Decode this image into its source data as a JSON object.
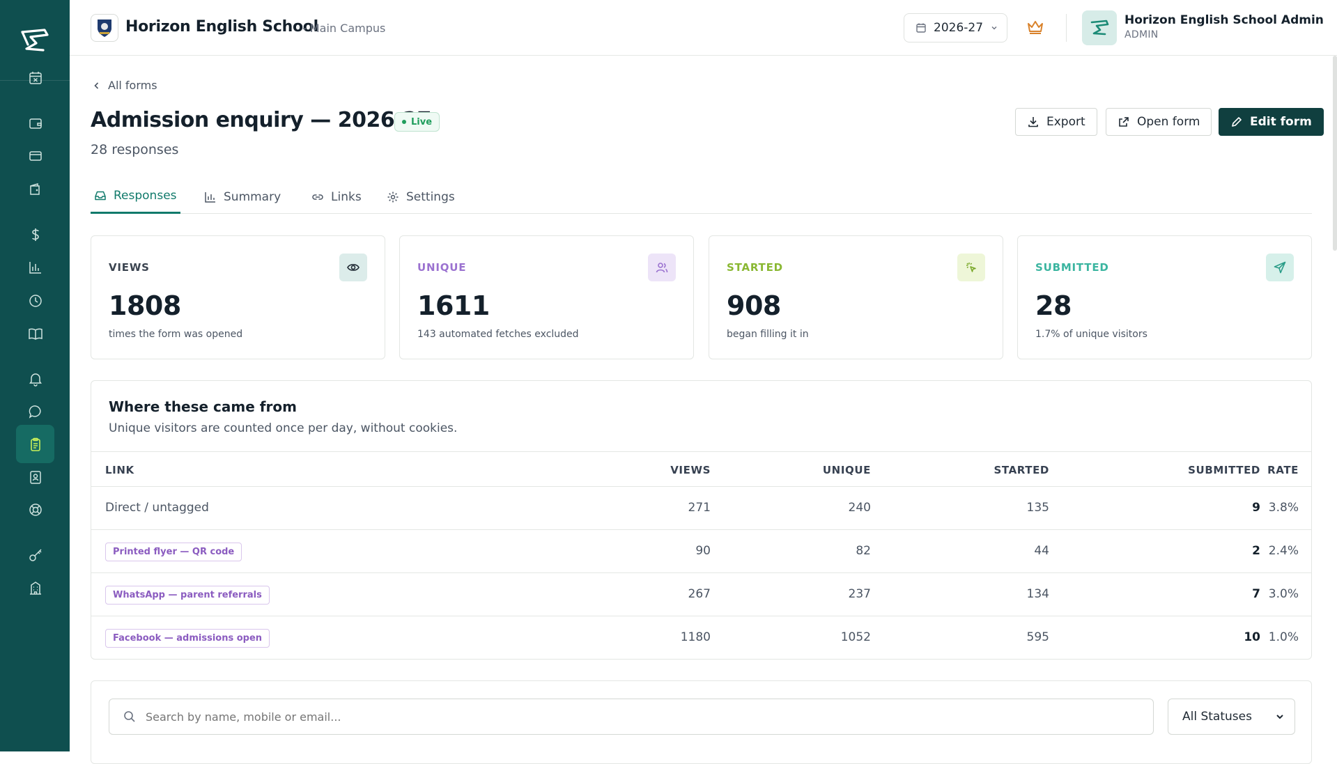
{
  "sidebar": {
    "items": [
      {
        "icon": "calendar-x-icon",
        "name": "sidebar-item-calendar"
      },
      {
        "icon": "wallet-icon",
        "name": "sidebar-item-wallet"
      },
      {
        "icon": "credit-card-icon",
        "name": "sidebar-item-cards"
      },
      {
        "icon": "wallet-2-icon",
        "name": "sidebar-item-wallet-2"
      },
      {
        "icon": "dollar-icon",
        "name": "sidebar-item-fees"
      },
      {
        "icon": "bar-chart-icon",
        "name": "sidebar-item-reports"
      },
      {
        "icon": "clock-icon",
        "name": "sidebar-item-history"
      },
      {
        "icon": "book-open-icon",
        "name": "sidebar-item-library"
      },
      {
        "icon": "bell-icon",
        "name": "sidebar-item-notifications"
      },
      {
        "icon": "message-icon",
        "name": "sidebar-item-messages"
      },
      {
        "icon": "clipboard-icon",
        "name": "sidebar-item-forms",
        "active": true
      },
      {
        "icon": "id-card-icon",
        "name": "sidebar-item-admissions"
      },
      {
        "icon": "lifebuoy-icon",
        "name": "sidebar-item-support"
      },
      {
        "icon": "key-icon",
        "name": "sidebar-item-access"
      },
      {
        "icon": "building-icon",
        "name": "sidebar-item-campus"
      }
    ]
  },
  "header": {
    "school_name": "Horizon English School",
    "campus": "- Main Campus",
    "year": "2026-27",
    "admin_name": "Horizon English School Admin",
    "admin_role": "ADMIN"
  },
  "page": {
    "back_label": "All forms",
    "title": "Admission enquiry — 2026-27",
    "status": "Live",
    "responses": "28 responses",
    "actions": {
      "export": "Export",
      "open": "Open form",
      "edit": "Edit form"
    }
  },
  "tabs": [
    {
      "label": "Responses",
      "icon": "inbox-icon",
      "active": true
    },
    {
      "label": "Summary",
      "icon": "bar-chart-icon"
    },
    {
      "label": "Links",
      "icon": "link-icon"
    },
    {
      "label": "Settings",
      "icon": "gear-icon"
    }
  ],
  "stats": [
    {
      "label": "VIEWS",
      "value": "1808",
      "sub": "times the form was opened",
      "color": "#3b4450",
      "icon": "eye-icon",
      "icon_bg": "#dcecea"
    },
    {
      "label": "UNIQUE",
      "value": "1611",
      "sub": "143 automated fetches excluded",
      "color": "#9b72d0",
      "icon": "users-icon",
      "icon_bg": "#ede4f8"
    },
    {
      "label": "STARTED",
      "value": "908",
      "sub": "began filling it in",
      "color": "#8ab833",
      "icon": "sparkle-cursor-icon",
      "icon_bg": "#eef6d8"
    },
    {
      "label": "SUBMITTED",
      "value": "28",
      "sub": "1.7% of unique visitors",
      "color": "#3bb5a0",
      "icon": "send-icon",
      "icon_bg": "#d6f0ea"
    }
  ],
  "sources": {
    "title": "Where these came from",
    "subtitle": "Unique visitors are counted once per day, without cookies.",
    "columns": [
      "LINK",
      "VIEWS",
      "UNIQUE",
      "STARTED",
      "SUBMITTED",
      "RATE"
    ],
    "rows": [
      {
        "link": "Direct / untagged",
        "tag": false,
        "views": "271",
        "unique": "240",
        "started": "135",
        "submitted": "9",
        "rate": "3.8%"
      },
      {
        "link": "Printed flyer — QR code",
        "tag": true,
        "views": "90",
        "unique": "82",
        "started": "44",
        "submitted": "2",
        "rate": "2.4%"
      },
      {
        "link": "WhatsApp — parent referrals",
        "tag": true,
        "views": "267",
        "unique": "237",
        "started": "134",
        "submitted": "7",
        "rate": "3.0%"
      },
      {
        "link": "Facebook — admissions open",
        "tag": true,
        "views": "1180",
        "unique": "1052",
        "started": "595",
        "submitted": "10",
        "rate": "1.0%"
      }
    ]
  },
  "filters": {
    "search_placeholder": "Search by name, mobile or email...",
    "status": "All Statuses"
  }
}
